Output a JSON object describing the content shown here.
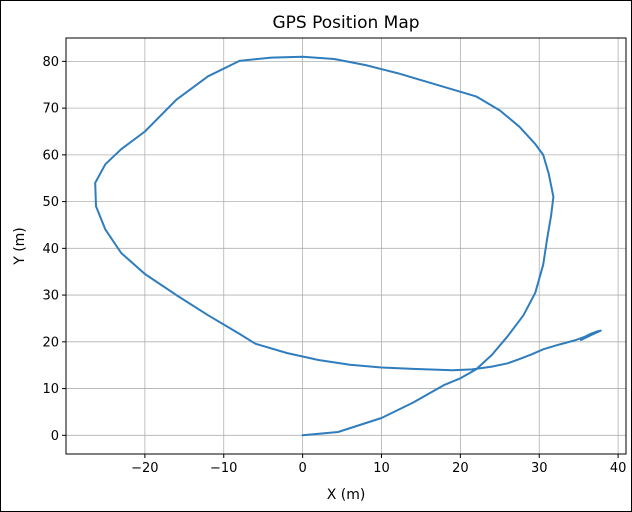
{
  "chart_data": {
    "type": "line",
    "title": "GPS Position Map",
    "xlabel": "X (m)",
    "ylabel": "Y (m)",
    "xlim": [
      -30,
      41
    ],
    "ylim": [
      -4,
      85
    ],
    "xticks": [
      -20,
      -10,
      0,
      10,
      20,
      30,
      40
    ],
    "yticks": [
      0,
      10,
      20,
      30,
      40,
      50,
      60,
      70,
      80
    ],
    "xtick_labels": [
      "−20",
      "−10",
      "0",
      "10",
      "20",
      "30",
      "40"
    ],
    "ytick_labels": [
      "0",
      "10",
      "20",
      "30",
      "40",
      "50",
      "60",
      "70",
      "80"
    ],
    "grid": true,
    "legend": "none",
    "series": [
      {
        "color": "#2f7dbd",
        "x": [
          0,
          4.5,
          10,
          14,
          18,
          20,
          22,
          24,
          26,
          28,
          29.5,
          30.5,
          31,
          31.5,
          31.8,
          31.2,
          30.5,
          29.5,
          27.5,
          25,
          22,
          19,
          15,
          12,
          8,
          4,
          0,
          -4,
          -8,
          -12,
          -16,
          -20,
          -23,
          -25,
          -26.3,
          -26.2,
          -25,
          -23,
          -20,
          -16,
          -12,
          -8,
          -6,
          -2,
          2,
          6,
          10,
          14,
          19,
          21.5,
          24,
          26,
          27.5,
          29,
          30.5,
          32.5,
          34.5,
          35.8,
          36.5,
          37.3,
          37.8,
          36.5,
          35.3
        ],
        "y": [
          0,
          0.7,
          3.7,
          7,
          10.8,
          12.2,
          14.1,
          17.2,
          21.2,
          25.7,
          30.5,
          36.5,
          42,
          47,
          51,
          56,
          60,
          62.3,
          66,
          69.5,
          72.5,
          74,
          76,
          77.5,
          79.2,
          80.5,
          81,
          80.8,
          80.1,
          76.8,
          71.8,
          65,
          61.2,
          58,
          54,
          49,
          44,
          39,
          34.5,
          30,
          25.7,
          21.7,
          19.6,
          17.6,
          16.1,
          15.1,
          14.5,
          14.2,
          13.9,
          14.1,
          14.7,
          15.4,
          16.3,
          17.3,
          18.4,
          19.4,
          20.3,
          21.1,
          21.7,
          22.2,
          22.4,
          21.4,
          20.4
        ]
      }
    ]
  }
}
